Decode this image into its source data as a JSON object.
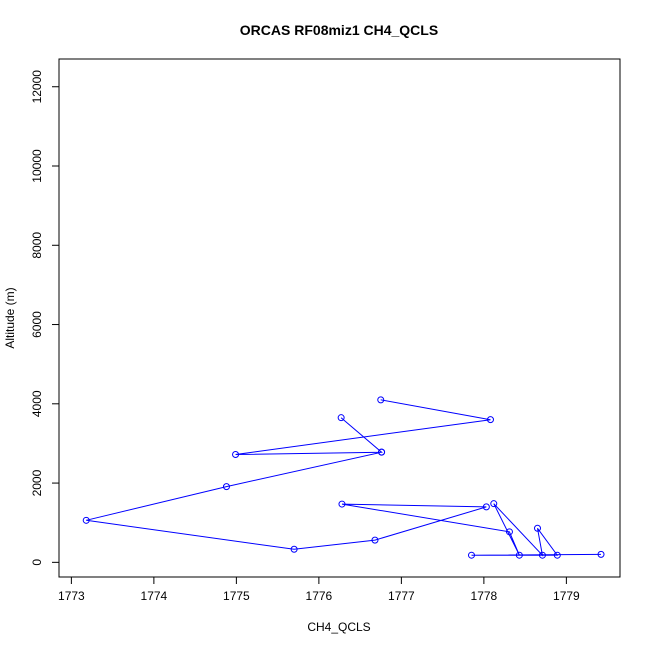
{
  "chart_data": {
    "type": "line",
    "title": "ORCAS RF08miz1 CH4_QCLS",
    "xlabel": "CH4_QCLS",
    "ylabel": "Altitude (m)",
    "xlim": [
      1772.85,
      1779.65
    ],
    "ylim": [
      -370,
      12700
    ],
    "x_ticks": [
      1773,
      1774,
      1775,
      1776,
      1777,
      1778,
      1779
    ],
    "y_ticks": [
      0,
      2000,
      4000,
      6000,
      8000,
      10000,
      12000
    ],
    "grid": false,
    "series": [
      {
        "color": "#0000ff",
        "marker": "open-circle",
        "x": [
          1776.75,
          1778.08,
          1774.99,
          1776.76,
          1776.27,
          1776.76,
          1774.88,
          1773.18,
          1775.7,
          1776.68,
          1778.03,
          1776.28,
          1778.31,
          1778.43,
          1778.12,
          1778.71,
          1778.65,
          1778.89,
          1777.85,
          1779.42
        ],
        "y": [
          4100,
          3600,
          2720,
          2780,
          3650,
          2780,
          1910,
          1060,
          330,
          560,
          1400,
          1470,
          770,
          180,
          1480,
          180,
          860,
          180,
          180,
          200
        ]
      }
    ]
  }
}
